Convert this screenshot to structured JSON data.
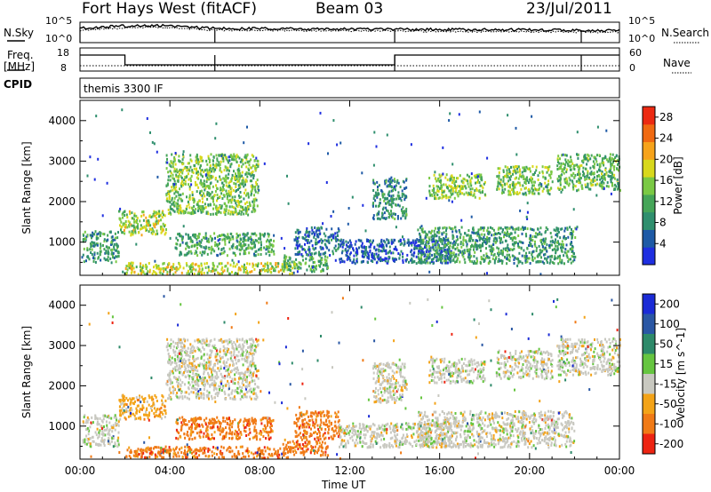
{
  "header": {
    "station": "Fort Hays West (fitACF)",
    "beam": "Beam 03",
    "date": "23/Jul/2011"
  },
  "top_panels": {
    "nsky_label": "N.Sky",
    "nsky_ticks": [
      "10^5",
      "10^0"
    ],
    "nsearch_label": "N.Search",
    "nsearch_ticks": [
      "10^5",
      "10^0"
    ],
    "freq_label": "Freq.",
    "freq_unit": "[MHz]",
    "freq_ticks": [
      "18",
      "8"
    ],
    "nave_label": "Nave",
    "nave_ticks": [
      "60",
      "0"
    ],
    "cpid_label": "CPID",
    "cpid_value": "themis 3300 IF"
  },
  "colors": {
    "power": [
      "#1f2fe0",
      "#1e5aa6",
      "#2f8f6e",
      "#45a558",
      "#7ac944",
      "#d8d81c",
      "#f6a31b",
      "#f06a12",
      "#ec2a12"
    ],
    "velocity": [
      "#1b2bd6",
      "#2a57a4",
      "#2e8a6a",
      "#66c540",
      "#c8c8c0",
      "#f3a318",
      "#f07a16",
      "#ed2412"
    ],
    "frame": "#000000"
  },
  "chart_data": [
    {
      "type": "heatmap",
      "panel": "power",
      "ylabel": "Slant Range [km]",
      "ylim": [
        180,
        4500
      ],
      "yticks": [
        "1000",
        "2000",
        "3000",
        "4000"
      ],
      "xlim_hours": [
        0,
        24
      ],
      "colorbar_label": "Power [dB]",
      "colorbar_ticks": [
        "4",
        "8",
        "12",
        "16",
        "20",
        "24",
        "28"
      ],
      "clim": [
        0,
        30
      ],
      "echo_regions": [
        {
          "t0": 0.1,
          "t1": 1.7,
          "r0": 520,
          "r1": 1300,
          "level": 10
        },
        {
          "t0": 1.7,
          "t1": 3.8,
          "r0": 1200,
          "r1": 1800,
          "level": 16
        },
        {
          "t0": 3.8,
          "t1": 7.9,
          "r0": 1700,
          "r1": 3200,
          "level": 14
        },
        {
          "t0": 4.2,
          "t1": 8.6,
          "r0": 700,
          "r1": 1250,
          "level": 11
        },
        {
          "t0": 2.0,
          "t1": 9.5,
          "r0": 230,
          "r1": 520,
          "level": 17
        },
        {
          "t0": 9.0,
          "t1": 11.0,
          "r0": 300,
          "r1": 700,
          "level": 12
        },
        {
          "t0": 9.5,
          "t1": 11.5,
          "r0": 700,
          "r1": 1400,
          "level": 6
        },
        {
          "t0": 11.5,
          "t1": 16.5,
          "r0": 500,
          "r1": 1100,
          "level": 5
        },
        {
          "t0": 15.0,
          "t1": 22.0,
          "r0": 500,
          "r1": 1400,
          "level": 10
        },
        {
          "t0": 15.5,
          "t1": 18.0,
          "r0": 2100,
          "r1": 2700,
          "level": 15
        },
        {
          "t0": 18.5,
          "t1": 21.0,
          "r0": 2200,
          "r1": 2900,
          "level": 14
        },
        {
          "t0": 21.2,
          "t1": 24.0,
          "r0": 2300,
          "r1": 3200,
          "level": 13
        },
        {
          "t0": 13.0,
          "t1": 14.5,
          "r0": 1600,
          "r1": 2600,
          "level": 9
        }
      ]
    },
    {
      "type": "heatmap",
      "panel": "velocity",
      "ylabel": "Slant Range [km]",
      "ylim": [
        180,
        4500
      ],
      "yticks": [
        "1000",
        "2000",
        "3000",
        "4000"
      ],
      "xlim_hours": [
        0,
        24
      ],
      "colorbar_label": "Velocity [m s^-1]",
      "colorbar_ticks": [
        "200",
        "100",
        "50",
        "15",
        "-15",
        "-50",
        "-100",
        "-200"
      ],
      "echo_regions": [
        {
          "t0": 0.1,
          "t1": 1.7,
          "r0": 520,
          "r1": 1300,
          "class": 4
        },
        {
          "t0": 1.7,
          "t1": 3.8,
          "r0": 1200,
          "r1": 1800,
          "class": 5
        },
        {
          "t0": 3.8,
          "t1": 7.9,
          "r0": 1700,
          "r1": 3200,
          "class": 4
        },
        {
          "t0": 4.2,
          "t1": 8.6,
          "r0": 700,
          "r1": 1250,
          "class": 6
        },
        {
          "t0": 2.0,
          "t1": 9.5,
          "r0": 230,
          "r1": 520,
          "class": 6
        },
        {
          "t0": 9.0,
          "t1": 11.0,
          "r0": 300,
          "r1": 700,
          "class": 6
        },
        {
          "t0": 9.5,
          "t1": 11.5,
          "r0": 700,
          "r1": 1400,
          "class": 6
        },
        {
          "t0": 11.5,
          "t1": 16.5,
          "r0": 500,
          "r1": 1100,
          "class": 4
        },
        {
          "t0": 15.0,
          "t1": 22.0,
          "r0": 500,
          "r1": 1400,
          "class": 4
        },
        {
          "t0": 15.5,
          "t1": 18.0,
          "r0": 2100,
          "r1": 2700,
          "class": 4
        },
        {
          "t0": 18.5,
          "t1": 21.0,
          "r0": 2200,
          "r1": 2900,
          "class": 4
        },
        {
          "t0": 21.2,
          "t1": 24.0,
          "r0": 2300,
          "r1": 3200,
          "class": 4
        },
        {
          "t0": 13.0,
          "t1": 14.5,
          "r0": 1600,
          "r1": 2600,
          "class": 4
        }
      ]
    }
  ],
  "x_axis": {
    "label": "Time UT",
    "ticks": [
      "00:00",
      "04:00",
      "08:00",
      "12:00",
      "16:00",
      "20:00",
      "00:00"
    ]
  }
}
